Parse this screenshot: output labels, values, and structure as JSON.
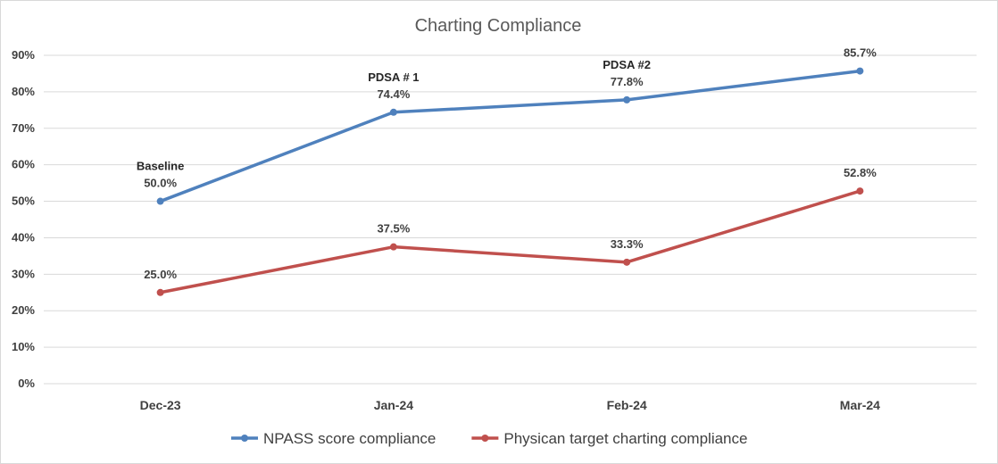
{
  "chart_data": {
    "type": "line",
    "title": "Charting Compliance",
    "categories": [
      "Dec-23",
      "Jan-24",
      "Feb-24",
      "Mar-24"
    ],
    "ylim": [
      0,
      90
    ],
    "yticks": [
      "0%",
      "10%",
      "20%",
      "30%",
      "40%",
      "50%",
      "60%",
      "70%",
      "80%",
      "90%"
    ],
    "grid": true,
    "legend_position": "bottom",
    "series": [
      {
        "name": "NPASS score compliance",
        "color": "#4f81bd",
        "values": [
          50.0,
          74.4,
          77.8,
          85.7
        ],
        "labels": [
          "50.0%",
          "74.4%",
          "77.8%",
          "85.7%"
        ],
        "annotations": [
          "Baseline",
          "PDSA # 1",
          "PDSA #2",
          ""
        ]
      },
      {
        "name": "Physican target charting compliance",
        "color": "#c0504d",
        "values": [
          25.0,
          37.5,
          33.3,
          52.8
        ],
        "labels": [
          "25.0%",
          "37.5%",
          "33.3%",
          "52.8%"
        ]
      }
    ]
  }
}
